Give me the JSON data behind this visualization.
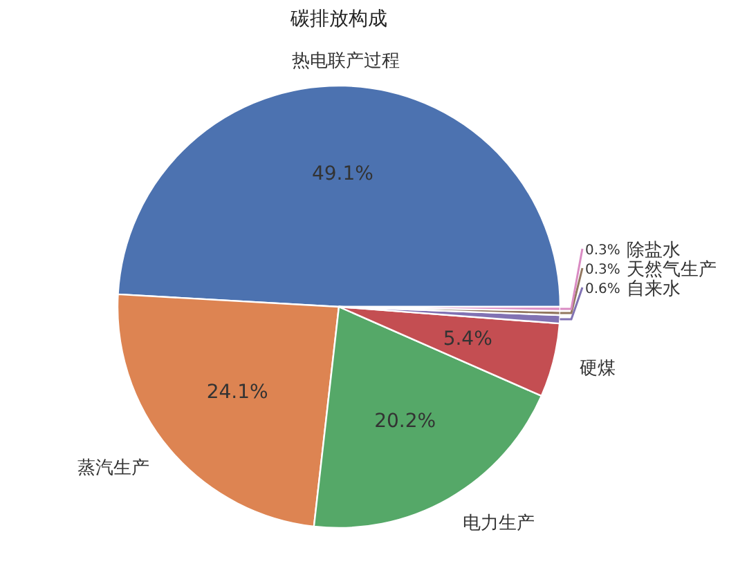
{
  "chart_data": {
    "type": "pie",
    "title": "碳排放构成",
    "categories": [
      "热电联产过程",
      "蒸汽生产",
      "电力生产",
      "硬煤",
      "自来水",
      "天然气生产",
      "除盐水"
    ],
    "values": [
      49.1,
      24.1,
      20.2,
      5.4,
      0.6,
      0.3,
      0.3
    ],
    "colors": [
      "#4c72b0",
      "#dd8452",
      "#55a868",
      "#c44e52",
      "#8172b3",
      "#937860",
      "#da8bc3"
    ],
    "value_labels": [
      "49.1%",
      "24.1%",
      "20.2%",
      "5.4%",
      "0.6%",
      "0.3%",
      "0.3%"
    ]
  }
}
